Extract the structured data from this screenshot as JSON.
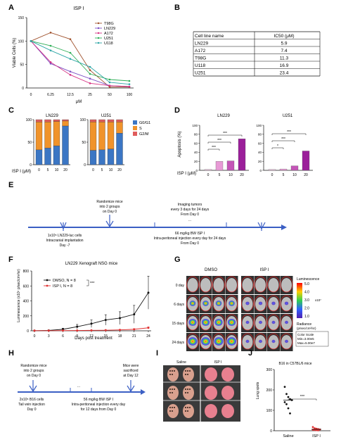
{
  "panels": {
    "A": {
      "label": "A",
      "title": "ISP I",
      "ylabel": "Viable Cells (%)",
      "xlabel": "μM",
      "chart_data": {
        "type": "line",
        "x": [
          "0",
          "6.25",
          "12.5",
          "25",
          "50",
          "100"
        ],
        "ylim": [
          0,
          150
        ],
        "yticks": [
          "0",
          "50",
          "100",
          "150"
        ],
        "series": [
          {
            "name": "T98G",
            "color": "#a0522d",
            "values": [
              100,
              118,
              104,
              38,
              2,
              2
            ]
          },
          {
            "name": "LN229",
            "color": "#7b4fc4",
            "values": [
              100,
              52,
              35,
              20,
              5,
              3
            ]
          },
          {
            "name": "A172",
            "color": "#d63384",
            "values": [
              100,
              55,
              28,
              10,
              5,
              3
            ]
          },
          {
            "name": "U251",
            "color": "#2eae57",
            "values": [
              100,
              90,
              75,
              30,
              18,
              15
            ]
          },
          {
            "name": "U118",
            "color": "#2ca5a5",
            "values": [
              100,
              80,
              62,
              45,
              12,
              8
            ]
          }
        ]
      }
    },
    "B": {
      "label": "B",
      "headers": [
        "Cell line name",
        "IC50 (μM)"
      ],
      "rows": [
        [
          "LN229",
          "5.9"
        ],
        [
          "A172",
          "7.4"
        ],
        [
          "T98G",
          "11.3"
        ],
        [
          "U118",
          "16.9"
        ],
        [
          "U251",
          "23.4"
        ]
      ]
    },
    "C": {
      "label": "C",
      "xlabel": "ISP I (μM)",
      "legend": [
        {
          "name": "G0/G1",
          "color": "#3b76c4"
        },
        {
          "name": "S",
          "color": "#f0932b"
        },
        {
          "name": "G2/M",
          "color": "#e05c5c"
        }
      ],
      "chart_data": [
        {
          "type": "bar",
          "title": "LN229",
          "categories": [
            "0",
            "5",
            "10",
            "20"
          ],
          "ylim": [
            0,
            100
          ],
          "yticks": [
            "0",
            "50",
            "100"
          ],
          "series": [
            {
              "name": "G0/G1",
              "values": [
                33,
                37,
                42,
                86
              ]
            },
            {
              "name": "S",
              "values": [
                62,
                58,
                54,
                11
              ]
            },
            {
              "name": "G2/M",
              "values": [
                5,
                5,
                4,
                3
              ]
            }
          ]
        },
        {
          "type": "bar",
          "title": "U251",
          "categories": [
            "0",
            "5",
            "10",
            "20"
          ],
          "ylim": [
            0,
            100
          ],
          "yticks": [
            "0",
            "50",
            "100"
          ],
          "series": [
            {
              "name": "G0/G1",
              "values": [
                32,
                33,
                35,
                70
              ]
            },
            {
              "name": "S",
              "values": [
                63,
                62,
                60,
                25
              ]
            },
            {
              "name": "G2/M",
              "values": [
                5,
                5,
                5,
                5
              ]
            }
          ]
        }
      ]
    },
    "D": {
      "label": "D",
      "ylabel": "Apoptosis (%)",
      "xlabel": "ISP I (μM)",
      "chart_data": [
        {
          "type": "bar",
          "title": "LN229",
          "categories": [
            "0",
            "5",
            "10",
            "20"
          ],
          "values": [
            2,
            20,
            21,
            70
          ],
          "colors": [
            "#f2c6e4",
            "#e89ad6",
            "#c455b7",
            "#9b1f9a"
          ],
          "ylim": [
            0,
            100
          ],
          "yticks": [
            "0",
            "20",
            "40",
            "60",
            "80",
            "100"
          ],
          "sig": [
            {
              "from": 0,
              "to": 1,
              "label": "***"
            },
            {
              "from": 0,
              "to": 2,
              "label": "***"
            },
            {
              "from": 0,
              "to": 3,
              "label": "***"
            }
          ]
        },
        {
          "type": "bar",
          "title": "U251",
          "categories": [
            "0",
            "5",
            "10",
            "20"
          ],
          "values": [
            2,
            3,
            10,
            43
          ],
          "colors": [
            "#f2c6e4",
            "#e89ad6",
            "#c455b7",
            "#9b1f9a"
          ],
          "ylim": [
            0,
            100
          ],
          "yticks": [
            "0",
            "20",
            "40",
            "60",
            "80",
            "100"
          ],
          "sig": [
            {
              "from": 0,
              "to": 1,
              "label": "*"
            },
            {
              "from": 0,
              "to": 2,
              "label": "***"
            },
            {
              "from": 0,
              "to": 3,
              "label": "***"
            }
          ]
        }
      ]
    },
    "E": {
      "label": "E",
      "texts": {
        "randomize_1": "Randomize mice",
        "randomize_2": "into 2 groups",
        "randomize_3": "on Day 0",
        "imaging_1": "Imaging tumors",
        "imaging_2": "every 3 days for 24 days",
        "imaging_3": "From Day 0",
        "cells_1": "1x10⁵ LN229-luc cells",
        "cells_2": "Intracranial implantation",
        "cells_3": "Day -7",
        "injection_1": "66 mg/kg BW ISP I",
        "injection_2": "Intra-peritoneal injection every day for 24 days",
        "injection_3": "From Day 0",
        "dots": "..."
      }
    },
    "F": {
      "label": "F",
      "title": "LN229 Xenograft NSG mice",
      "ylabel": "Luminescence (x10⁷ p/sec/cm²/sr)",
      "xlabel": "Days post treatment",
      "significance": "***",
      "chart_data": {
        "type": "line",
        "x": [
          0,
          3,
          6,
          9,
          12,
          15,
          18,
          21,
          24
        ],
        "xticks": [
          "0",
          "3",
          "6",
          "9",
          "12",
          "15",
          "18",
          "21",
          "24"
        ],
        "ylim": [
          0,
          800
        ],
        "yticks": [
          "0",
          "200",
          "400",
          "600",
          "800"
        ],
        "series": [
          {
            "name": "DMSO, N = 8",
            "color": "#111111",
            "values": [
              2,
              5,
              20,
              55,
              95,
              145,
              170,
              220,
              510
            ],
            "err": [
              2,
              5,
              15,
              30,
              50,
              70,
              85,
              120,
              220
            ]
          },
          {
            "name": "ISP I, N = 8",
            "color": "#e03030",
            "values": [
              2,
              2,
              3,
              4,
              6,
              8,
              12,
              20,
              40
            ],
            "err": [
              1,
              1,
              2,
              2,
              3,
              4,
              5,
              8,
              12
            ]
          }
        ]
      }
    },
    "G": {
      "label": "G",
      "col_dmso": "DMSO",
      "col_isp": "ISP I",
      "rows": [
        "0 day",
        "6 days",
        "15 days",
        "24 days"
      ],
      "colorbar_title": "Luminescence",
      "colorbar_ticks": [
        "5.0",
        "4.0",
        "3.0",
        "2.0",
        "1.0"
      ],
      "colorbar_unit": "x10⁷",
      "radiance_1": "Radiance",
      "radiance_2": "(p/sec/cm²/sr)",
      "scale_1": "Color Scale",
      "scale_2": "Min=3.00e5",
      "scale_3": "Max=5.00e7",
      "signal_dmso": [
        0,
        0.5,
        0.8,
        1.0
      ],
      "signal_isp": [
        0,
        0.15,
        0.1,
        0.1
      ]
    },
    "H": {
      "label": "H",
      "texts": {
        "randomize_1": "Randomize mice",
        "randomize_2": "into 2 groups",
        "randomize_3": "on Day 0",
        "sacrificed_1": "Mice were",
        "sacrificed_2": "sacrificed",
        "sacrificed_3": "at Day 12",
        "cells_1": "2x10⁵ B16 cells",
        "cells_2": "Tail vein injection",
        "cells_3": "Day 0",
        "injection_1": "56 mg/kg BW ISP I",
        "injection_2": "Intra-peritoneal injection every day",
        "injection_3": "for 12 days from Day 0",
        "dots": "..."
      }
    },
    "I": {
      "label": "I",
      "col_saline": "Saline",
      "col_isp": "ISP I"
    },
    "J": {
      "label": "J",
      "title": "B16 in C57BL/6 mice",
      "ylabel": "Lung spots",
      "significance": "***",
      "chart_data": {
        "type": "scatter",
        "categories": [
          "Saline",
          "ISP I"
        ],
        "ylim": [
          0,
          300
        ],
        "yticks": [
          "0",
          "100",
          "200",
          "300"
        ],
        "series": [
          {
            "name": "Saline",
            "color": "#111111",
            "values": [
              215,
              180,
              165,
              155,
              150,
              140,
              130,
              110,
              85
            ],
            "mean": 150
          },
          {
            "name": "ISP I",
            "color": "#e03030",
            "values": [
              18,
              12,
              10,
              8,
              6,
              5,
              4,
              3,
              2
            ],
            "mean": 7
          }
        ]
      }
    }
  }
}
